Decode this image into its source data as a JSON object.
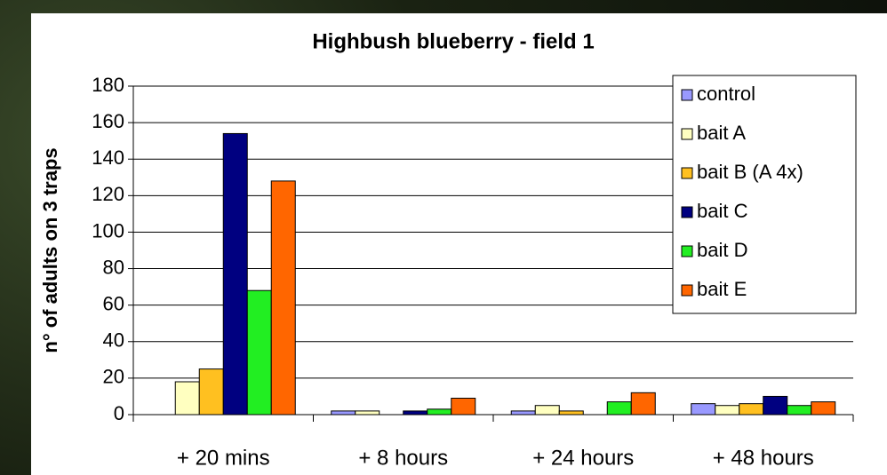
{
  "chart_data": {
    "type": "bar",
    "title": "Highbush blueberry - field 1",
    "y_label": "n° of adults on 3 traps",
    "categories": [
      "+ 20 mins",
      "+ 8 hours",
      "+ 24 hours",
      "+ 48 hours"
    ],
    "series": [
      {
        "name": "control",
        "color": "#9999ff",
        "values": [
          0,
          2,
          2,
          6
        ]
      },
      {
        "name": "bait A",
        "color": "#ffffc0",
        "values": [
          18,
          2,
          5,
          5
        ]
      },
      {
        "name": "bait B (A 4x)",
        "color": "#ffc020",
        "values": [
          25,
          0,
          2,
          6
        ]
      },
      {
        "name": "bait C",
        "color": "#000080",
        "values": [
          154,
          2,
          0,
          10
        ]
      },
      {
        "name": "bait D",
        "color": "#22ee22",
        "values": [
          68,
          3,
          7,
          5
        ]
      },
      {
        "name": "bait E",
        "color": "#ff6600",
        "values": [
          128,
          9,
          12,
          7
        ]
      }
    ],
    "ylim": [
      0,
      180
    ],
    "yticks": [
      0,
      20,
      40,
      60,
      80,
      100,
      120,
      140,
      160,
      180
    ],
    "grid": true,
    "legend": "top-right"
  }
}
